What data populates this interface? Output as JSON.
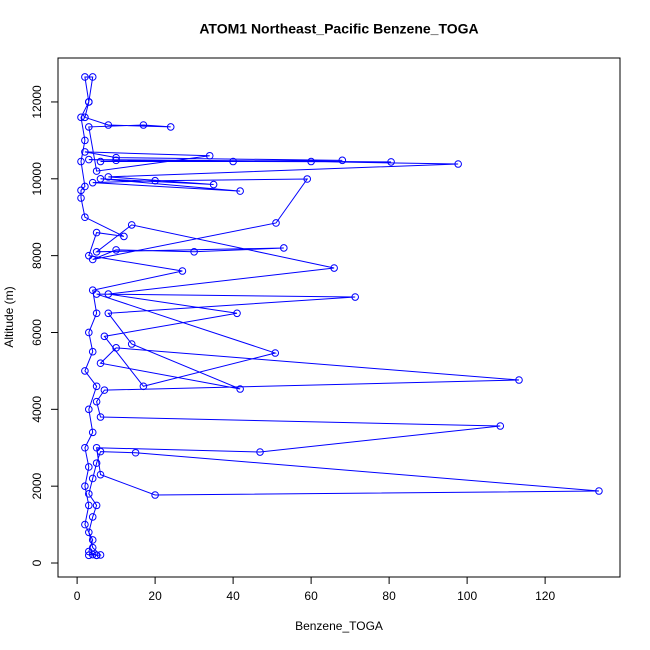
{
  "chart_data": {
    "type": "line",
    "markers": true,
    "title": "ATOM1 Northeast_Pacific Benzene_TOGA",
    "x_label": "Benzene_TOGA",
    "y_label": "Altitude (m)",
    "xlim": [
      -4.9,
      139.2
    ],
    "ylim": [
      -364,
      13144
    ],
    "xticks": [
      0,
      20,
      40,
      60,
      80,
      100,
      120
    ],
    "yticks": [
      0,
      2000,
      4000,
      6000,
      8000,
      10000,
      12000
    ],
    "series": [
      {
        "color": "#0000ff",
        "x": [
          3,
          4,
          5,
          6,
          4,
          3,
          4,
          5,
          3,
          4,
          5,
          6,
          15,
          133.8,
          20,
          6,
          5,
          46.9,
          108.5,
          6,
          5,
          7,
          113.3,
          10,
          6,
          41.8,
          14,
          8,
          71.3,
          5,
          50.8,
          17,
          7,
          41,
          8,
          65.9,
          14,
          5,
          53,
          30,
          10,
          4,
          51,
          59,
          20,
          4,
          41.8,
          6,
          35,
          8,
          97.7,
          60,
          10,
          3,
          80.5,
          40,
          6,
          68,
          10,
          2,
          34,
          5,
          3,
          17,
          24,
          8,
          2,
          3,
          2,
          4,
          3,
          1,
          2,
          1,
          2,
          1,
          1,
          2,
          12,
          5,
          3,
          27,
          4,
          5,
          3,
          4,
          2,
          5,
          3,
          4,
          2,
          3,
          2,
          3,
          2,
          4,
          3,
          5
        ],
        "values": [
          200,
          220,
          200,
          210,
          400,
          800,
          1200,
          1500,
          1800,
          2200,
          2600,
          2900,
          2870,
          1874,
          1770,
          2300,
          3000,
          2889,
          3566,
          3800,
          4200,
          4500,
          4763,
          5600,
          5200,
          4529,
          5700,
          6500,
          6923,
          7000,
          5466,
          4600,
          5900,
          6500,
          7000,
          7678,
          8800,
          8100,
          8200,
          8100,
          8150,
          7900,
          8850,
          9995,
          9950,
          9900,
          9680,
          10000,
          9850,
          10050,
          10385,
          10450,
          10480,
          10500,
          10440,
          10450,
          10450,
          10480,
          10550,
          10700,
          10600,
          10200,
          11350,
          11400,
          11350,
          11400,
          11600,
          12000,
          12650,
          12650,
          12000,
          11600,
          11000,
          10450,
          9800,
          9700,
          9500,
          9000,
          8500,
          8600,
          8000,
          7600,
          7100,
          6500,
          6000,
          5500,
          5000,
          4600,
          4000,
          3400,
          3000,
          2500,
          2000,
          1500,
          1000,
          600,
          300,
          200
        ]
      }
    ]
  }
}
